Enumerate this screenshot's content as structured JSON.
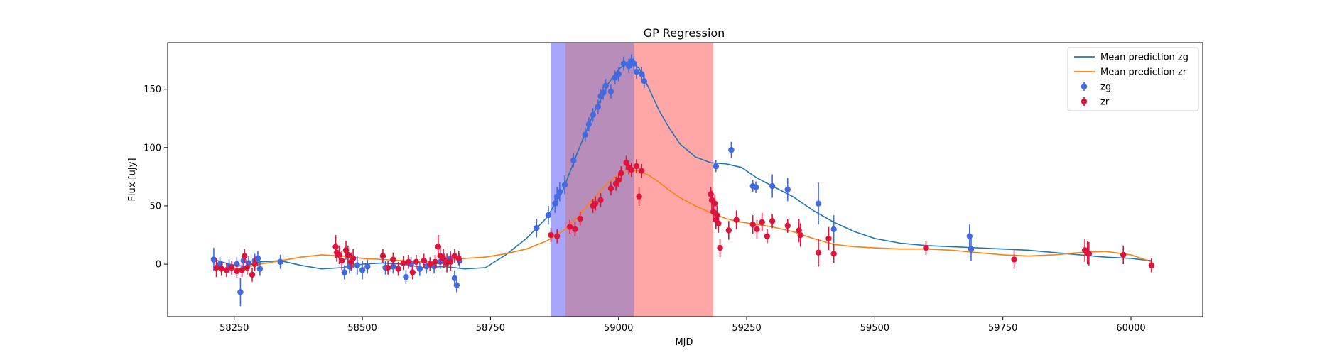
{
  "chart_data": {
    "type": "scatter",
    "title": "GP Regression",
    "xlabel": "MJD",
    "ylabel": "Flux [uJy]",
    "xlim": [
      58120,
      60140
    ],
    "ylim": [
      -45,
      190
    ],
    "xticks": [
      58250,
      58500,
      58750,
      59000,
      59250,
      59500,
      59750,
      60000
    ],
    "yticks": [
      0,
      50,
      100,
      150
    ],
    "grid": false,
    "legend_position": "top-right",
    "shaded_regions": [
      {
        "x0": 58868,
        "x1": 58896,
        "color": "#0000ff",
        "opacity": 0.35
      },
      {
        "x0": 58896,
        "x1": 59030,
        "color": "#7f2f7f",
        "opacity": 0.55
      },
      {
        "x0": 59030,
        "x1": 59185,
        "color": "#ff3b3b",
        "opacity": 0.45
      }
    ],
    "lines": [
      {
        "name": "Mean prediction zg",
        "color": "#1f77b4",
        "x": [
          58210,
          58240,
          58270,
          58300,
          58340,
          58380,
          58420,
          58460,
          58500,
          58540,
          58580,
          58620,
          58660,
          58700,
          58740,
          58780,
          58820,
          58860,
          58890,
          58920,
          58950,
          58980,
          59000,
          59020,
          59040,
          59060,
          59080,
          59100,
          59120,
          59150,
          59180,
          59210,
          59240,
          59270,
          59300,
          59340,
          59380,
          59420,
          59460,
          59500,
          59550,
          59600,
          59650,
          59700,
          59750,
          59800,
          59850,
          59900,
          59950,
          60000,
          60040
        ],
        "y": [
          4,
          0,
          -2,
          2,
          3,
          -1,
          -4,
          -3,
          0,
          1,
          0,
          -3,
          -2,
          -4,
          -3,
          8,
          22,
          40,
          62,
          96,
          128,
          155,
          167,
          174,
          168,
          150,
          131,
          116,
          103,
          92,
          87,
          86,
          83,
          74,
          67,
          58,
          46,
          36,
          28,
          22,
          18,
          16,
          15,
          14,
          13,
          12,
          10,
          8,
          6,
          5,
          3
        ]
      },
      {
        "name": "Mean prediction zr",
        "color": "#ff7f0e",
        "x": [
          58210,
          58240,
          58270,
          58300,
          58340,
          58380,
          58420,
          58460,
          58500,
          58540,
          58580,
          58620,
          58660,
          58700,
          58740,
          58780,
          58820,
          58860,
          58890,
          58920,
          58950,
          58980,
          59000,
          59020,
          59040,
          59060,
          59080,
          59100,
          59120,
          59150,
          59180,
          59210,
          59240,
          59270,
          59300,
          59340,
          59380,
          59420,
          59460,
          59500,
          59550,
          59600,
          59650,
          59700,
          59750,
          59800,
          59850,
          59900,
          59950,
          60000,
          60040
        ],
        "y": [
          -2,
          -4,
          -3,
          0,
          3,
          6,
          8,
          7,
          5,
          4,
          3,
          2,
          3,
          5,
          6,
          9,
          13,
          20,
          28,
          40,
          56,
          70,
          77,
          80,
          80,
          76,
          70,
          63,
          57,
          50,
          44,
          39,
          36,
          34,
          32,
          28,
          22,
          17,
          15,
          14,
          13,
          13,
          12,
          10,
          8,
          7,
          8,
          10,
          11,
          8,
          2
        ]
      }
    ],
    "series": [
      {
        "name": "zg",
        "color": "#4169e1",
        "x": [
          58210,
          58222,
          58240,
          58255,
          58262,
          58268,
          58278,
          58290,
          58296,
          58300,
          58340,
          58465,
          58475,
          58490,
          58500,
          58510,
          58545,
          58560,
          58585,
          58595,
          58612,
          58625,
          58640,
          58652,
          58660,
          58672,
          58680,
          58684,
          58690,
          58840,
          58863,
          58876,
          58880,
          58885,
          58895,
          58912,
          58935,
          58942,
          58950,
          58960,
          58965,
          58970,
          58975,
          58985,
          58993,
          59000,
          59010,
          59020,
          59025,
          59030,
          59035,
          59045,
          59050,
          59190,
          59220,
          59262,
          59268,
          59300,
          59330,
          59390,
          59420,
          59685,
          59688
        ],
        "y": [
          4,
          0,
          -2,
          0,
          -24,
          3,
          1,
          3,
          5,
          -4,
          2,
          -7,
          -2,
          -1,
          -5,
          -2,
          -3,
          -2,
          -11,
          0,
          -4,
          -2,
          -2,
          2,
          3,
          5,
          -12,
          -18,
          3,
          31,
          42,
          52,
          58,
          62,
          68,
          89,
          111,
          120,
          128,
          135,
          144,
          147,
          153,
          148,
          160,
          163,
          172,
          170,
          174,
          172,
          165,
          163,
          157,
          84,
          98,
          67,
          66,
          67,
          64,
          52,
          30,
          24,
          13
        ],
        "err": [
          10,
          6,
          6,
          6,
          12,
          6,
          6,
          6,
          6,
          6,
          6,
          6,
          6,
          8,
          8,
          6,
          6,
          6,
          6,
          6,
          6,
          6,
          6,
          6,
          6,
          6,
          6,
          6,
          6,
          8,
          8,
          8,
          8,
          8,
          8,
          6,
          6,
          6,
          6,
          6,
          6,
          6,
          6,
          6,
          6,
          6,
          6,
          6,
          6,
          6,
          6,
          6,
          6,
          5,
          7,
          5,
          5,
          10,
          10,
          18,
          12,
          10,
          10
        ]
      },
      {
        "name": "zr",
        "color": "#dc143c",
        "x": [
          58215,
          58225,
          58235,
          58245,
          58255,
          58265,
          58270,
          58275,
          58285,
          58290,
          58448,
          58450,
          58455,
          58460,
          58468,
          58472,
          58478,
          58482,
          58540,
          58550,
          58560,
          58570,
          58580,
          58590,
          58598,
          58605,
          58620,
          58632,
          58642,
          58648,
          58652,
          58658,
          58665,
          58672,
          58680,
          58688,
          58868,
          58880,
          58905,
          58915,
          58925,
          58950,
          58955,
          58965,
          58985,
          58995,
          59000,
          59005,
          59015,
          59020,
          59025,
          59035,
          59040,
          59045,
          59180,
          59182,
          59185,
          59188,
          59190,
          59192,
          59195,
          59198,
          59215,
          59230,
          59262,
          59270,
          59280,
          59290,
          59300,
          59330,
          59352,
          59355,
          59390,
          59410,
          59420,
          59600,
          59772,
          59910,
          59915,
          59918,
          59985,
          60040
        ],
        "y": [
          -3,
          -4,
          -5,
          -3,
          -6,
          -5,
          7,
          -3,
          -9,
          0,
          15,
          10,
          8,
          3,
          12,
          8,
          2,
          5,
          7,
          -3,
          4,
          -4,
          1,
          2,
          -7,
          2,
          3,
          0,
          2,
          15,
          7,
          5,
          1,
          2,
          7,
          5,
          25,
          24,
          32,
          30,
          39,
          50,
          52,
          55,
          65,
          69,
          72,
          78,
          87,
          83,
          81,
          84,
          58,
          80,
          60,
          55,
          45,
          52,
          38,
          42,
          35,
          14,
          29,
          38,
          34,
          30,
          36,
          24,
          37,
          33,
          29,
          25,
          10,
          22,
          9,
          14,
          4,
          12,
          10,
          9,
          8,
          -1
        ],
        "err": [
          8,
          6,
          6,
          6,
          6,
          6,
          6,
          6,
          6,
          6,
          10,
          8,
          8,
          8,
          8,
          8,
          8,
          8,
          6,
          6,
          6,
          6,
          6,
          6,
          6,
          6,
          6,
          6,
          6,
          10,
          8,
          8,
          8,
          8,
          6,
          6,
          6,
          6,
          6,
          6,
          6,
          6,
          6,
          6,
          6,
          6,
          6,
          6,
          6,
          6,
          6,
          6,
          8,
          6,
          6,
          8,
          8,
          8,
          8,
          8,
          8,
          8,
          8,
          8,
          8,
          8,
          8,
          6,
          6,
          6,
          10,
          10,
          12,
          10,
          8,
          6,
          8,
          10,
          10,
          10,
          8,
          6
        ]
      }
    ]
  }
}
